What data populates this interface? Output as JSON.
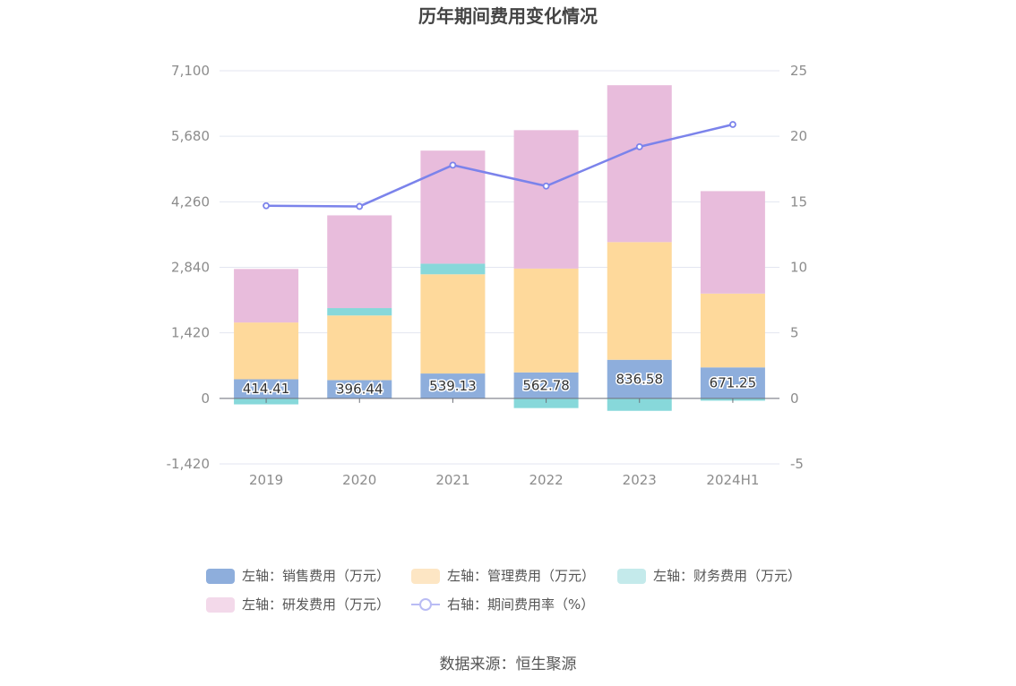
{
  "chart_data": {
    "type": "bar",
    "title": "历年期间费用变化情况",
    "categories": [
      "2019",
      "2020",
      "2021",
      "2022",
      "2023",
      "2024H1"
    ],
    "left_axis": {
      "ylim": [
        -1420,
        7100
      ],
      "ticks": [
        -1420,
        0,
        1420,
        2840,
        4260,
        5680,
        7100
      ],
      "tick_labels": [
        "-1,420",
        "0",
        "1,420",
        "2,840",
        "4,260",
        "5,680",
        "7,100"
      ]
    },
    "right_axis": {
      "ylim": [
        -5,
        25
      ],
      "ticks": [
        -5,
        0,
        5,
        10,
        15,
        20,
        25
      ],
      "tick_labels": [
        "-5",
        "0",
        "5",
        "10",
        "15",
        "20",
        "25"
      ]
    },
    "stacked": true,
    "series": [
      {
        "name": "左轴：销售费用（万元）",
        "axis": "left",
        "color": "#8eaedc",
        "values": [
          414.41,
          396.44,
          539.13,
          562.78,
          836.58,
          671.25
        ],
        "labels": [
          "414.41",
          "396.44",
          "539.13",
          "562.78",
          "836.58",
          "671.25"
        ]
      },
      {
        "name": "左轴：管理费用（万元）",
        "axis": "left",
        "color": "#fed99b",
        "values": [
          1230,
          1400,
          2150,
          2250,
          2550,
          1600
        ]
      },
      {
        "name": "左轴：财务费用（万元）",
        "axis": "left",
        "color": "#87d8da",
        "values": [
          -130,
          160,
          230,
          -210,
          -270,
          -50
        ]
      },
      {
        "name": "左轴：研发费用（万元）",
        "axis": "left",
        "color": "#e8bcdc",
        "values": [
          1160,
          2010,
          2450,
          3000,
          3400,
          2220
        ]
      },
      {
        "name": "右轴：期间费用率（%）",
        "axis": "right",
        "type": "line",
        "color": "#7b83eb",
        "values": [
          14.7,
          14.65,
          17.8,
          16.2,
          19.2,
          20.9
        ]
      }
    ],
    "grid": true,
    "legend_position": "bottom"
  },
  "source_text": "数据来源：恒生聚源"
}
